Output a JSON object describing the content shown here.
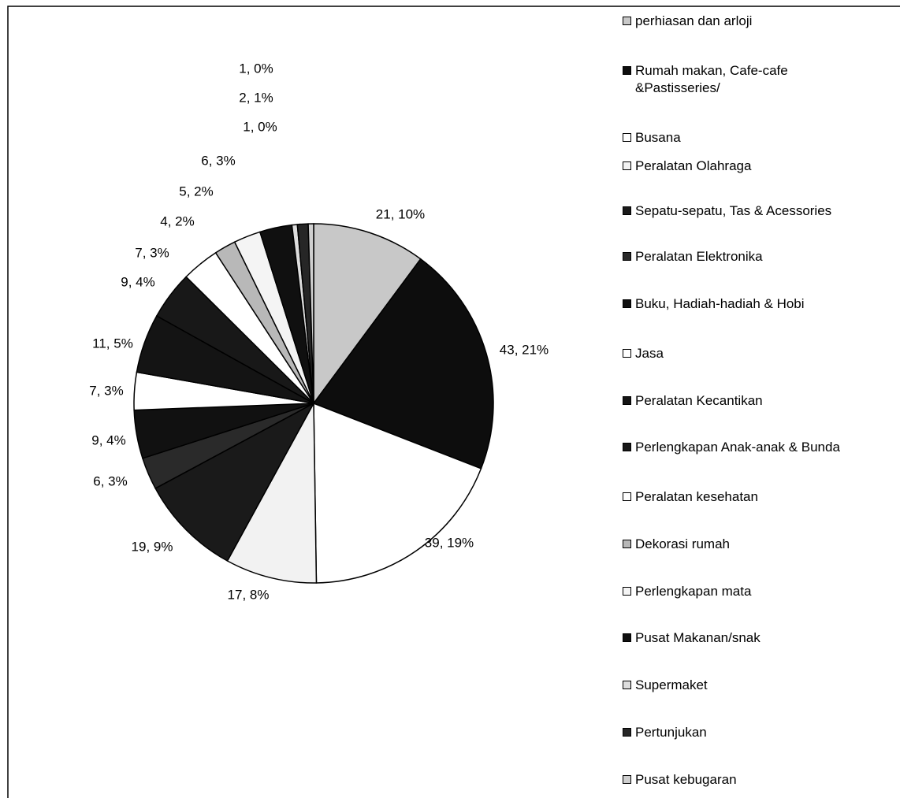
{
  "chart_data": {
    "type": "pie",
    "categories": [
      "perhiasan dan arloji",
      "Rumah makan, Cafe-cafe &Pastisseries/",
      "Busana",
      "Peralatan Olahraga",
      "Sepatu-sepatu, Tas & Acessories",
      "Peralatan Elektronika",
      "Buku, Hadiah-hadiah & Hobi",
      "Jasa",
      "Peralatan Kecantikan",
      "Perlengkapan Anak-anak & Bunda",
      "Peralatan kesehatan",
      "Dekorasi rumah",
      "Perlengkapan  mata",
      "Pusat Makanan/snak",
      "Supermaket",
      "Pertunjukan",
      "Pusat kebugaran"
    ],
    "values": [
      21,
      43,
      39,
      17,
      19,
      6,
      9,
      7,
      11,
      9,
      7,
      4,
      5,
      6,
      1,
      2,
      1
    ],
    "value_labels": [
      "21, 10%",
      "43, 21%",
      "39, 19%",
      "17, 8%",
      "19, 9%",
      "6, 3%",
      "9, 4%",
      "7, 3%",
      "11, 5%",
      "9, 4%",
      "7, 3%",
      "4, 2%",
      "5, 2%",
      "6, 3%",
      "1, 0%",
      "2, 1%",
      "1, 0%"
    ],
    "colors": [
      "#c8c8c8",
      "#0d0d0d",
      "#ffffff",
      "#f2f2f2",
      "#1a1a1a",
      "#2a2a2a",
      "#111111",
      "#ffffff",
      "#141414",
      "#181818",
      "#ffffff",
      "#b8b8b8",
      "#f4f4f4",
      "#101010",
      "#dddddd",
      "#262626",
      "#cfcfcf"
    ],
    "legend": "right"
  }
}
